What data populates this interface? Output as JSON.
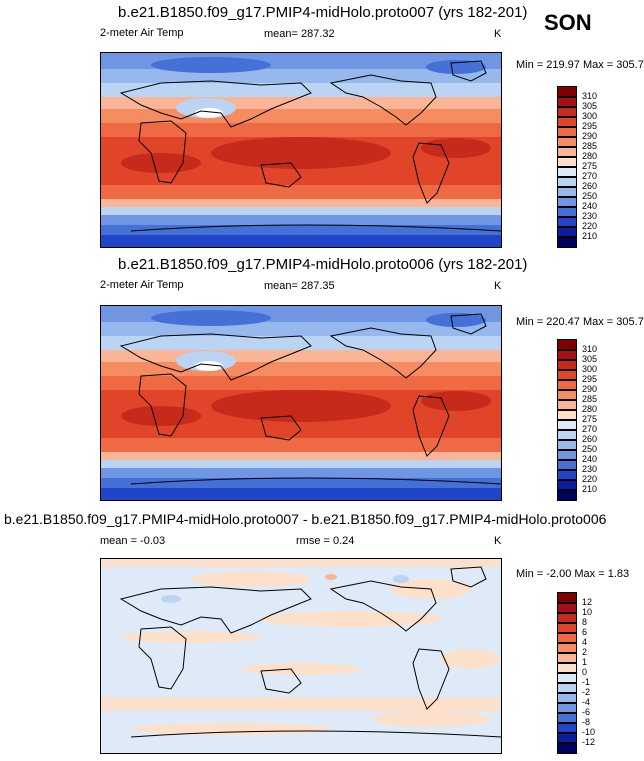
{
  "season": "SON",
  "panels": [
    {
      "id": "top",
      "title": "b.e21.B1850.f09_g17.PMIP4-midHolo.proto007 (yrs 182-201)",
      "variable": "2-meter Air Temp",
      "mean_text": "mean= 287.32",
      "unit": "K",
      "minmax": "Min = 219.97 Max = 305.74"
    },
    {
      "id": "middle",
      "title": "b.e21.B1850.f09_g17.PMIP4-midHolo.proto006 (yrs 182-201)",
      "variable": "2-meter Air Temp",
      "mean_text": "mean= 287.35",
      "unit": "K",
      "minmax": "Min = 220.47 Max = 305.70"
    },
    {
      "id": "bottom",
      "title": "b.e21.B1850.f09_g17.PMIP4-midHolo.proto007 - b.e21.B1850.f09_g17.PMIP4-midHolo.proto006",
      "mean_text": "mean =  -0.03",
      "rmse_text": "rmse =   0.24",
      "unit": "K",
      "minmax": "Min =  -2.00 Max =   1.83"
    }
  ],
  "chart_data": [
    {
      "type": "heatmap",
      "title": "b.e21.B1850.f09_g17.PMIP4-midHolo.proto007 (yrs 182-201)",
      "field": "2-meter Air Temp",
      "units": "K",
      "mean": 287.32,
      "min": 219.97,
      "max": 305.74,
      "colorbar_levels": [
        "310",
        "305",
        "300",
        "295",
        "290",
        "285",
        "280",
        "275",
        "270",
        "260",
        "250",
        "240",
        "230",
        "220",
        "210"
      ]
    },
    {
      "type": "heatmap",
      "title": "b.e21.B1850.f09_g17.PMIP4-midHolo.proto006 (yrs 182-201)",
      "field": "2-meter Air Temp",
      "units": "K",
      "mean": 287.35,
      "min": 220.47,
      "max": 305.7,
      "colorbar_levels": [
        "310",
        "305",
        "300",
        "295",
        "290",
        "285",
        "280",
        "275",
        "270",
        "260",
        "250",
        "240",
        "230",
        "220",
        "210"
      ]
    },
    {
      "type": "heatmap",
      "title": "b.e21.B1850.f09_g17.PMIP4-midHolo.proto007 - b.e21.B1850.f09_g17.PMIP4-midHolo.proto006",
      "units": "K",
      "mean": -0.03,
      "rmse": 0.24,
      "min": -2.0,
      "max": 1.83,
      "colorbar_levels": [
        "12",
        "10",
        "8",
        "6",
        "4",
        "2",
        "1",
        "0",
        "-1",
        "-2",
        "-4",
        "-6",
        "-8",
        "-10",
        "-12"
      ]
    }
  ],
  "colors": {
    "scale": [
      "#7f0000",
      "#a50f15",
      "#c62a1b",
      "#e0452a",
      "#ef6a42",
      "#f58c62",
      "#f9b595",
      "#fde0cb",
      "#dfeaf8",
      "#bcd4f3",
      "#96b8ec",
      "#6f96e2",
      "#4570d6",
      "#2145c8",
      "#0b1d9e",
      "#00005e"
    ]
  }
}
